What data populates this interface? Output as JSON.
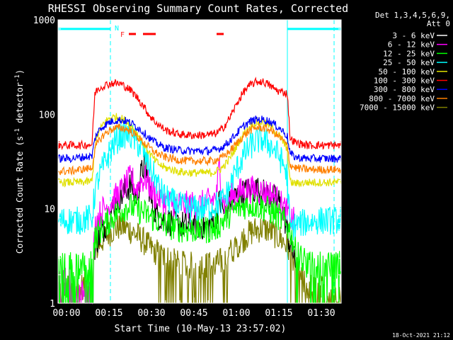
{
  "chart_data": {
    "type": "line",
    "title": "RHESSI Observing Summary Count Rates, Corrected",
    "xlabel": "Start Time (10-May-13 23:57:02)",
    "ylabel": "Corrected Count Rate (s⁻¹ detector⁻¹)",
    "x_unit": "minutes since start",
    "xlim": [
      0,
      100
    ],
    "ylim": [
      1,
      1000
    ],
    "yscale": "log",
    "x_ticks": [
      {
        "value": 3,
        "label": "00:00"
      },
      {
        "value": 18,
        "label": "00:15"
      },
      {
        "value": 33,
        "label": "00:30"
      },
      {
        "value": 48,
        "label": "00:45"
      },
      {
        "value": 63,
        "label": "01:00"
      },
      {
        "value": 78,
        "label": "01:15"
      },
      {
        "value": 93,
        "label": "01:30"
      }
    ],
    "y_ticks": [
      {
        "value": 1,
        "label": "1"
      },
      {
        "value": 10,
        "label": "10"
      },
      {
        "value": 100,
        "label": "100"
      },
      {
        "value": 1000,
        "label": "1000"
      }
    ],
    "legend_header": [
      "Det 1,3,4,5,6,9,",
      "Att 0"
    ],
    "legend_placement": "right",
    "footer": "18-Oct-2021 21:12",
    "flags": [
      {
        "label": "N",
        "color": "#00ffff",
        "x": 20
      },
      {
        "label": "F",
        "color": "#ff2020",
        "x": 22
      }
    ],
    "flare_bars": [
      [
        25,
        27.5
      ],
      [
        30,
        34.5
      ],
      [
        56,
        58.5
      ]
    ],
    "eclipse_bars": [
      [
        0,
        18.5
      ],
      [
        81,
        100
      ]
    ],
    "eclipse_level": 800,
    "markers_dashed": [
      18.5,
      97.5
    ],
    "markers_solid": [
      81
    ],
    "series": [
      {
        "name": "3 - 6 keV",
        "color": "#ffffff",
        "plot_color": "#000000",
        "x": [
          13,
          14,
          16,
          18,
          20,
          22,
          24,
          26,
          27,
          28,
          29,
          30,
          31,
          32,
          33,
          34,
          35,
          38,
          42,
          46,
          50,
          54,
          56,
          57,
          58,
          59,
          60,
          62,
          64,
          66,
          68,
          70,
          72,
          74,
          76,
          78,
          80,
          82,
          84
        ],
        "y": [
          4.0,
          4.8,
          6.0,
          8.2,
          11,
          13,
          16,
          18,
          14,
          14,
          21,
          27,
          28,
          18,
          12,
          10,
          8.5,
          7.5,
          7,
          6.6,
          6.5,
          6.8,
          8.5,
          12,
          10,
          9,
          11,
          13,
          14,
          15,
          16,
          16,
          15,
          14,
          13,
          12,
          8,
          4,
          3
        ]
      },
      {
        "name": "6 - 12 keV",
        "color": "#ff00ff",
        "x": [
          0,
          2,
          4,
          6,
          8,
          10,
          12,
          13,
          14,
          16,
          18,
          20,
          22,
          24,
          26,
          27,
          28,
          29,
          30,
          31,
          32,
          33,
          34,
          36,
          38,
          42,
          46,
          50,
          54,
          56,
          57,
          58,
          59,
          60,
          62,
          64,
          66,
          68,
          70,
          72,
          74,
          76,
          78,
          80,
          82,
          84
        ],
        "y": [
          1.6,
          1.7,
          1.8,
          1.5,
          1.4,
          1.3,
          1.3,
          6.5,
          8,
          10,
          11,
          13,
          15,
          18,
          22,
          17,
          16,
          20,
          20,
          21,
          18,
          16,
          14,
          13,
          12,
          11,
          11,
          11,
          12,
          14,
          30,
          14,
          11,
          12,
          14,
          15,
          16,
          16,
          16,
          15,
          15,
          14,
          12,
          10,
          8,
          7
        ]
      },
      {
        "name": "12 - 25 keV",
        "color": "#00ff00",
        "x": [
          0,
          4,
          8,
          12,
          13,
          14,
          16,
          18,
          20,
          22,
          24,
          26,
          28,
          30,
          32,
          34,
          36,
          38,
          42,
          46,
          50,
          54,
          56,
          58,
          60,
          62,
          64,
          66,
          68,
          70,
          72,
          74,
          76,
          78,
          80,
          82,
          84,
          88,
          92,
          96,
          100
        ],
        "y": [
          2.5,
          2.5,
          2.5,
          2.6,
          4.8,
          5.5,
          6.5,
          7.5,
          8.5,
          9.5,
          10.5,
          10.5,
          9.8,
          9.2,
          8.4,
          7.8,
          7.2,
          6.8,
          6.3,
          6,
          6,
          6,
          6.4,
          7.3,
          8.5,
          9.5,
          10.2,
          10.8,
          11,
          10.8,
          10.4,
          9.8,
          9,
          8.2,
          7.2,
          5.8,
          3.5,
          2.5,
          2.5,
          2.5,
          2.6
        ]
      },
      {
        "name": "25 - 50 keV",
        "color": "#00ffff",
        "x": [
          0,
          4,
          8,
          10,
          12,
          13,
          14,
          16,
          18,
          20,
          22,
          24,
          26,
          28,
          30,
          32,
          34,
          36,
          38,
          42,
          46,
          50,
          54,
          56,
          58,
          60,
          62,
          64,
          66,
          68,
          70,
          72,
          74,
          76,
          78,
          80,
          81,
          82,
          84,
          88,
          92,
          96,
          100
        ],
        "y": [
          7.5,
          7.5,
          7.5,
          7.8,
          8,
          15,
          20,
          28,
          38,
          50,
          58,
          62,
          58,
          50,
          40,
          30,
          22,
          16,
          13,
          11,
          10,
          10,
          10.5,
          11,
          12,
          15,
          22,
          30,
          38,
          46,
          52,
          54,
          50,
          44,
          36,
          28,
          20,
          6,
          6.8,
          7.2,
          7.5,
          7.5,
          7.6
        ]
      },
      {
        "name": "50 - 100 keV",
        "color": "#e0e000",
        "x": [
          0,
          4,
          8,
          12,
          13,
          14,
          16,
          18,
          20,
          22,
          24,
          26,
          28,
          30,
          32,
          34,
          36,
          38,
          42,
          46,
          50,
          54,
          56,
          58,
          60,
          62,
          64,
          66,
          68,
          70,
          72,
          74,
          76,
          78,
          80,
          81,
          82,
          84,
          88,
          92,
          96,
          100
        ],
        "y": [
          19,
          19,
          19,
          19.5,
          45,
          60,
          80,
          90,
          94,
          92,
          85,
          74,
          62,
          50,
          40,
          33,
          29,
          27,
          25,
          24,
          24,
          24,
          25,
          27,
          32,
          40,
          52,
          65,
          75,
          82,
          82,
          78,
          70,
          60,
          48,
          40,
          19,
          18.5,
          19,
          19,
          19,
          19
        ]
      },
      {
        "name": "100 - 300 keV",
        "color": "#ff0000",
        "x": [
          0,
          4,
          8,
          12,
          13,
          14,
          16,
          18,
          20,
          22,
          24,
          26,
          28,
          30,
          32,
          34,
          36,
          38,
          42,
          46,
          50,
          54,
          56,
          58,
          60,
          62,
          64,
          66,
          68,
          70,
          72,
          74,
          76,
          78,
          80,
          81,
          82,
          84,
          88,
          92,
          96,
          100
        ],
        "y": [
          47,
          47,
          47,
          48,
          165,
          185,
          200,
          210,
          215,
          210,
          195,
          175,
          150,
          125,
          100,
          85,
          75,
          68,
          62,
          60,
          60,
          61,
          63,
          70,
          85,
          110,
          145,
          180,
          205,
          220,
          222,
          210,
          190,
          175,
          170,
          165,
          55,
          50,
          47,
          47,
          47,
          47
        ]
      },
      {
        "name": "300 - 800 keV",
        "color": "#0000ff",
        "x": [
          0,
          4,
          8,
          12,
          13,
          14,
          16,
          18,
          20,
          22,
          24,
          26,
          28,
          30,
          32,
          34,
          36,
          38,
          42,
          46,
          50,
          54,
          56,
          58,
          60,
          62,
          64,
          66,
          68,
          70,
          72,
          74,
          76,
          78,
          80,
          81,
          82,
          84,
          88,
          92,
          96,
          100
        ],
        "y": [
          34,
          34,
          35,
          36,
          55,
          65,
          75,
          82,
          86,
          87,
          85,
          80,
          73,
          65,
          57,
          51,
          47,
          44,
          42,
          41,
          41,
          41,
          42,
          45,
          50,
          58,
          67,
          77,
          84,
          88,
          88,
          86,
          80,
          72,
          64,
          58,
          38,
          35,
          34,
          34,
          34,
          34
        ]
      },
      {
        "name": "800 - 7000 keV",
        "color": "#ff8000",
        "x": [
          0,
          4,
          8,
          12,
          13,
          14,
          16,
          18,
          20,
          22,
          24,
          26,
          28,
          30,
          32,
          34,
          36,
          38,
          42,
          46,
          50,
          54,
          56,
          58,
          60,
          62,
          64,
          66,
          68,
          70,
          72,
          74,
          76,
          78,
          80,
          81,
          82,
          84,
          88,
          92,
          96,
          100
        ],
        "y": [
          25,
          25,
          26,
          27,
          42,
          50,
          60,
          67,
          71,
          72,
          70,
          65,
          58,
          51,
          45,
          40,
          37,
          35,
          33,
          32,
          32,
          32,
          33,
          35,
          39,
          45,
          53,
          61,
          68,
          72,
          72,
          70,
          65,
          58,
          51,
          45,
          29,
          27,
          26,
          26,
          26,
          26
        ]
      },
      {
        "name": "7000 - 15000 keV",
        "color": "#808000",
        "x": [
          0,
          4,
          8,
          12,
          13,
          14,
          16,
          18,
          20,
          22,
          24,
          26,
          28,
          30,
          32,
          34,
          36,
          38,
          40,
          42,
          46,
          50,
          54,
          56,
          58,
          60,
          62,
          64,
          66,
          68,
          70,
          72,
          74,
          76,
          78,
          80,
          82,
          84,
          88,
          92,
          96,
          100
        ],
        "y": [
          1.4,
          1.4,
          1.5,
          1.6,
          3.5,
          4,
          4.8,
          5.5,
          6.2,
          6.5,
          6.3,
          5.8,
          5.2,
          4.6,
          4,
          3.6,
          3.3,
          3,
          2.8,
          2.6,
          2.5,
          2.5,
          2.5,
          2.6,
          2.8,
          3.2,
          3.8,
          4.4,
          5,
          5.6,
          6,
          6.2,
          6,
          5.5,
          5,
          4.4,
          3.5,
          2.2,
          1.5,
          1.4,
          1.4,
          1.4
        ]
      }
    ]
  }
}
